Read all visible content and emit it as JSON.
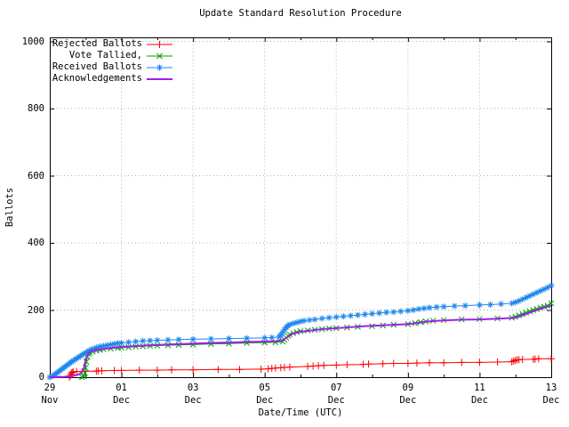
{
  "title": "Update Standard Resolution Procedure",
  "axes": {
    "x": {
      "label": "Date/Time (UTC)",
      "ticks": [
        {
          "day": "29",
          "month": "Nov",
          "pos_days": 0
        },
        {
          "day": "01",
          "month": "Dec",
          "pos_days": 2
        },
        {
          "day": "03",
          "month": "Dec",
          "pos_days": 4
        },
        {
          "day": "05",
          "month": "Dec",
          "pos_days": 6
        },
        {
          "day": "07",
          "month": "Dec",
          "pos_days": 8
        },
        {
          "day": "09",
          "month": "Dec",
          "pos_days": 10
        },
        {
          "day": "11",
          "month": "Dec",
          "pos_days": 12
        },
        {
          "day": "13",
          "month": "Dec",
          "pos_days": 14
        }
      ],
      "minor_tick_days": [
        1,
        3,
        5,
        7,
        9,
        11,
        13
      ]
    },
    "y": {
      "label": "Ballots",
      "ticks": [
        0,
        200,
        400,
        600,
        800,
        1000
      ]
    }
  },
  "legend": [
    {
      "label": "Rejected Ballots",
      "series": "rejected"
    },
    {
      "label": "Vote Tallied,",
      "series": "tallied"
    },
    {
      "label": "Received Ballots",
      "series": "received"
    },
    {
      "label": "Acknowledgements",
      "series": "acknowledgements"
    }
  ],
  "colors": {
    "rejected": "#ff0000",
    "tallied": "#00a000",
    "received": "#1c86ee",
    "acknowledgements": "#a020f0",
    "grid": "#b0b0b0",
    "border": "#000000"
  },
  "chart_data": {
    "type": "line",
    "title": "Update Standard Resolution Procedure",
    "xlabel": "Date/Time (UTC)",
    "ylabel": "Ballots",
    "x_unit": "days since 29 Nov 00:00 UTC",
    "x_range_days": [
      0,
      14
    ],
    "y_range": [
      0,
      1000
    ],
    "grid": true,
    "legend_position": "top-left",
    "series": [
      {
        "id": "rejected",
        "name": "Rejected Ballots",
        "marker": "plus",
        "line_width": 1,
        "points": [
          [
            0.55,
            0
          ],
          [
            0.58,
            5
          ],
          [
            0.6,
            10
          ],
          [
            0.62,
            14
          ],
          [
            0.65,
            16
          ],
          [
            0.75,
            17
          ],
          [
            0.9,
            17
          ],
          [
            1,
            18
          ],
          [
            1.3,
            18
          ],
          [
            1.35,
            19
          ],
          [
            1.45,
            19
          ],
          [
            1.8,
            20
          ],
          [
            2,
            20
          ],
          [
            2.5,
            21
          ],
          [
            3,
            21
          ],
          [
            3.4,
            22
          ],
          [
            4,
            22
          ],
          [
            4.7,
            23
          ],
          [
            5.3,
            23
          ],
          [
            5.9,
            24
          ],
          [
            6.1,
            25
          ],
          [
            6.2,
            26
          ],
          [
            6.3,
            27
          ],
          [
            6.45,
            28
          ],
          [
            6.55,
            29
          ],
          [
            6.7,
            30
          ],
          [
            7.2,
            32
          ],
          [
            7.35,
            33
          ],
          [
            7.5,
            34
          ],
          [
            7.65,
            35
          ],
          [
            8,
            36
          ],
          [
            8.3,
            37
          ],
          [
            8.75,
            38
          ],
          [
            8.9,
            39
          ],
          [
            9.3,
            40
          ],
          [
            9.6,
            41
          ],
          [
            10,
            41
          ],
          [
            10.25,
            42
          ],
          [
            10.6,
            43
          ],
          [
            11,
            43
          ],
          [
            11.5,
            44
          ],
          [
            12,
            44
          ],
          [
            12.5,
            45
          ],
          [
            12.9,
            46
          ],
          [
            12.95,
            48
          ],
          [
            13,
            50
          ],
          [
            13.05,
            52
          ],
          [
            13.1,
            52
          ],
          [
            13.2,
            53
          ],
          [
            13.5,
            53
          ],
          [
            13.55,
            54
          ],
          [
            13.65,
            55
          ],
          [
            14,
            55
          ]
        ]
      },
      {
        "id": "tallied",
        "name": "Vote Tallied,",
        "marker": "cross",
        "line_width": 1,
        "points": [
          [
            0.9,
            0
          ],
          [
            0.95,
            3
          ],
          [
            0.98,
            12
          ],
          [
            1,
            28
          ],
          [
            1.02,
            46
          ],
          [
            1.05,
            61
          ],
          [
            1.08,
            69
          ],
          [
            1.12,
            73
          ],
          [
            1.2,
            76
          ],
          [
            1.3,
            79
          ],
          [
            1.4,
            81
          ],
          [
            1.5,
            83
          ],
          [
            1.7,
            85
          ],
          [
            1.9,
            87
          ],
          [
            2,
            88
          ],
          [
            2.2,
            89
          ],
          [
            2.4,
            91
          ],
          [
            2.6,
            92
          ],
          [
            2.8,
            93
          ],
          [
            3,
            94
          ],
          [
            3.3,
            95
          ],
          [
            3.6,
            96
          ],
          [
            4,
            97
          ],
          [
            4.5,
            99
          ],
          [
            5,
            100
          ],
          [
            5.5,
            102
          ],
          [
            6,
            103
          ],
          [
            6.3,
            104
          ],
          [
            6.5,
            106
          ],
          [
            6.55,
            111
          ],
          [
            6.6,
            117
          ],
          [
            6.65,
            123
          ],
          [
            6.7,
            127
          ],
          [
            6.8,
            131
          ],
          [
            6.9,
            134
          ],
          [
            7,
            137
          ],
          [
            7.2,
            139
          ],
          [
            7.4,
            141
          ],
          [
            7.6,
            143
          ],
          [
            7.8,
            145
          ],
          [
            8,
            146
          ],
          [
            8.3,
            148
          ],
          [
            8.6,
            150
          ],
          [
            9,
            152
          ],
          [
            9.3,
            154
          ],
          [
            9.6,
            156
          ],
          [
            10,
            158
          ],
          [
            10.2,
            161
          ],
          [
            10.35,
            164
          ],
          [
            10.5,
            166
          ],
          [
            10.7,
            168
          ],
          [
            11,
            170
          ],
          [
            11.5,
            172
          ],
          [
            12,
            173
          ],
          [
            12.5,
            175
          ],
          [
            12.9,
            177
          ],
          [
            13,
            180
          ],
          [
            13.1,
            184
          ],
          [
            13.2,
            188
          ],
          [
            13.3,
            192
          ],
          [
            13.4,
            196
          ],
          [
            13.5,
            200
          ],
          [
            13.6,
            203
          ],
          [
            13.7,
            207
          ],
          [
            13.8,
            210
          ],
          [
            13.9,
            213
          ],
          [
            14,
            220
          ]
        ]
      },
      {
        "id": "received",
        "name": "Received Ballots",
        "marker": "star",
        "line_width": 1,
        "points": [
          [
            0,
            0
          ],
          [
            0.05,
            2
          ],
          [
            0.1,
            5
          ],
          [
            0.15,
            9
          ],
          [
            0.2,
            13
          ],
          [
            0.25,
            17
          ],
          [
            0.3,
            21
          ],
          [
            0.35,
            25
          ],
          [
            0.4,
            29
          ],
          [
            0.45,
            33
          ],
          [
            0.5,
            37
          ],
          [
            0.55,
            41
          ],
          [
            0.6,
            45
          ],
          [
            0.65,
            49
          ],
          [
            0.7,
            52
          ],
          [
            0.75,
            56
          ],
          [
            0.8,
            59
          ],
          [
            0.85,
            63
          ],
          [
            0.9,
            66
          ],
          [
            0.95,
            70
          ],
          [
            1,
            73
          ],
          [
            1.05,
            76
          ],
          [
            1.1,
            79
          ],
          [
            1.15,
            82
          ],
          [
            1.2,
            84
          ],
          [
            1.3,
            88
          ],
          [
            1.4,
            91
          ],
          [
            1.5,
            93
          ],
          [
            1.6,
            95
          ],
          [
            1.7,
            97
          ],
          [
            1.8,
            99
          ],
          [
            1.9,
            101
          ],
          [
            2,
            102
          ],
          [
            2.2,
            104
          ],
          [
            2.4,
            106
          ],
          [
            2.6,
            108
          ],
          [
            2.8,
            109
          ],
          [
            3,
            110
          ],
          [
            3.3,
            111
          ],
          [
            3.6,
            112
          ],
          [
            4,
            113
          ],
          [
            4.5,
            114
          ],
          [
            5,
            115
          ],
          [
            5.5,
            116
          ],
          [
            6,
            117
          ],
          [
            6.2,
            118
          ],
          [
            6.4,
            120
          ],
          [
            6.45,
            126
          ],
          [
            6.5,
            133
          ],
          [
            6.55,
            141
          ],
          [
            6.6,
            148
          ],
          [
            6.65,
            153
          ],
          [
            6.7,
            157
          ],
          [
            6.8,
            160
          ],
          [
            6.9,
            163
          ],
          [
            7,
            166
          ],
          [
            7.1,
            168
          ],
          [
            7.25,
            170
          ],
          [
            7.4,
            172
          ],
          [
            7.6,
            175
          ],
          [
            7.8,
            177
          ],
          [
            8,
            179
          ],
          [
            8.2,
            181
          ],
          [
            8.4,
            183
          ],
          [
            8.6,
            185
          ],
          [
            8.8,
            187
          ],
          [
            9,
            189
          ],
          [
            9.2,
            191
          ],
          [
            9.4,
            193
          ],
          [
            9.6,
            194
          ],
          [
            9.8,
            196
          ],
          [
            10,
            198
          ],
          [
            10.15,
            200
          ],
          [
            10.3,
            203
          ],
          [
            10.45,
            205
          ],
          [
            10.6,
            207
          ],
          [
            10.8,
            209
          ],
          [
            11,
            210
          ],
          [
            11.3,
            212
          ],
          [
            11.6,
            213
          ],
          [
            12,
            215
          ],
          [
            12.3,
            216
          ],
          [
            12.6,
            218
          ],
          [
            12.9,
            220
          ],
          [
            13,
            223
          ],
          [
            13.1,
            227
          ],
          [
            13.2,
            232
          ],
          [
            13.3,
            237
          ],
          [
            13.4,
            242
          ],
          [
            13.5,
            247
          ],
          [
            13.6,
            252
          ],
          [
            13.7,
            257
          ],
          [
            13.8,
            262
          ],
          [
            13.9,
            267
          ],
          [
            14,
            273
          ]
        ]
      },
      {
        "id": "acknowledgements",
        "name": "Acknowledgements",
        "marker": "none",
        "line_width": 2,
        "points": [
          [
            0,
            0
          ],
          [
            0.4,
            1
          ],
          [
            0.6,
            3
          ],
          [
            0.75,
            6
          ],
          [
            0.85,
            10
          ],
          [
            0.95,
            25
          ],
          [
            1,
            52
          ],
          [
            1.05,
            67
          ],
          [
            1.1,
            73
          ],
          [
            1.2,
            78
          ],
          [
            1.3,
            81
          ],
          [
            1.5,
            84
          ],
          [
            1.7,
            87
          ],
          [
            2,
            90
          ],
          [
            2.3,
            92
          ],
          [
            2.6,
            94
          ],
          [
            3,
            96
          ],
          [
            3.5,
            98
          ],
          [
            4,
            100
          ],
          [
            4.5,
            102
          ],
          [
            5,
            103
          ],
          [
            5.5,
            105
          ],
          [
            6,
            106
          ],
          [
            6.3,
            107
          ],
          [
            6.5,
            110
          ],
          [
            6.6,
            117
          ],
          [
            6.7,
            124
          ],
          [
            6.8,
            130
          ],
          [
            7,
            135
          ],
          [
            7.3,
            139
          ],
          [
            7.6,
            143
          ],
          [
            8,
            146
          ],
          [
            8.4,
            149
          ],
          [
            8.8,
            152
          ],
          [
            9.2,
            154
          ],
          [
            9.6,
            156
          ],
          [
            10,
            158
          ],
          [
            10.3,
            162
          ],
          [
            10.6,
            166
          ],
          [
            11,
            169
          ],
          [
            11.5,
            171
          ],
          [
            12,
            172
          ],
          [
            12.5,
            174
          ],
          [
            13,
            177
          ],
          [
            13.2,
            184
          ],
          [
            13.4,
            192
          ],
          [
            13.6,
            200
          ],
          [
            13.8,
            207
          ],
          [
            14,
            213
          ]
        ]
      }
    ]
  }
}
